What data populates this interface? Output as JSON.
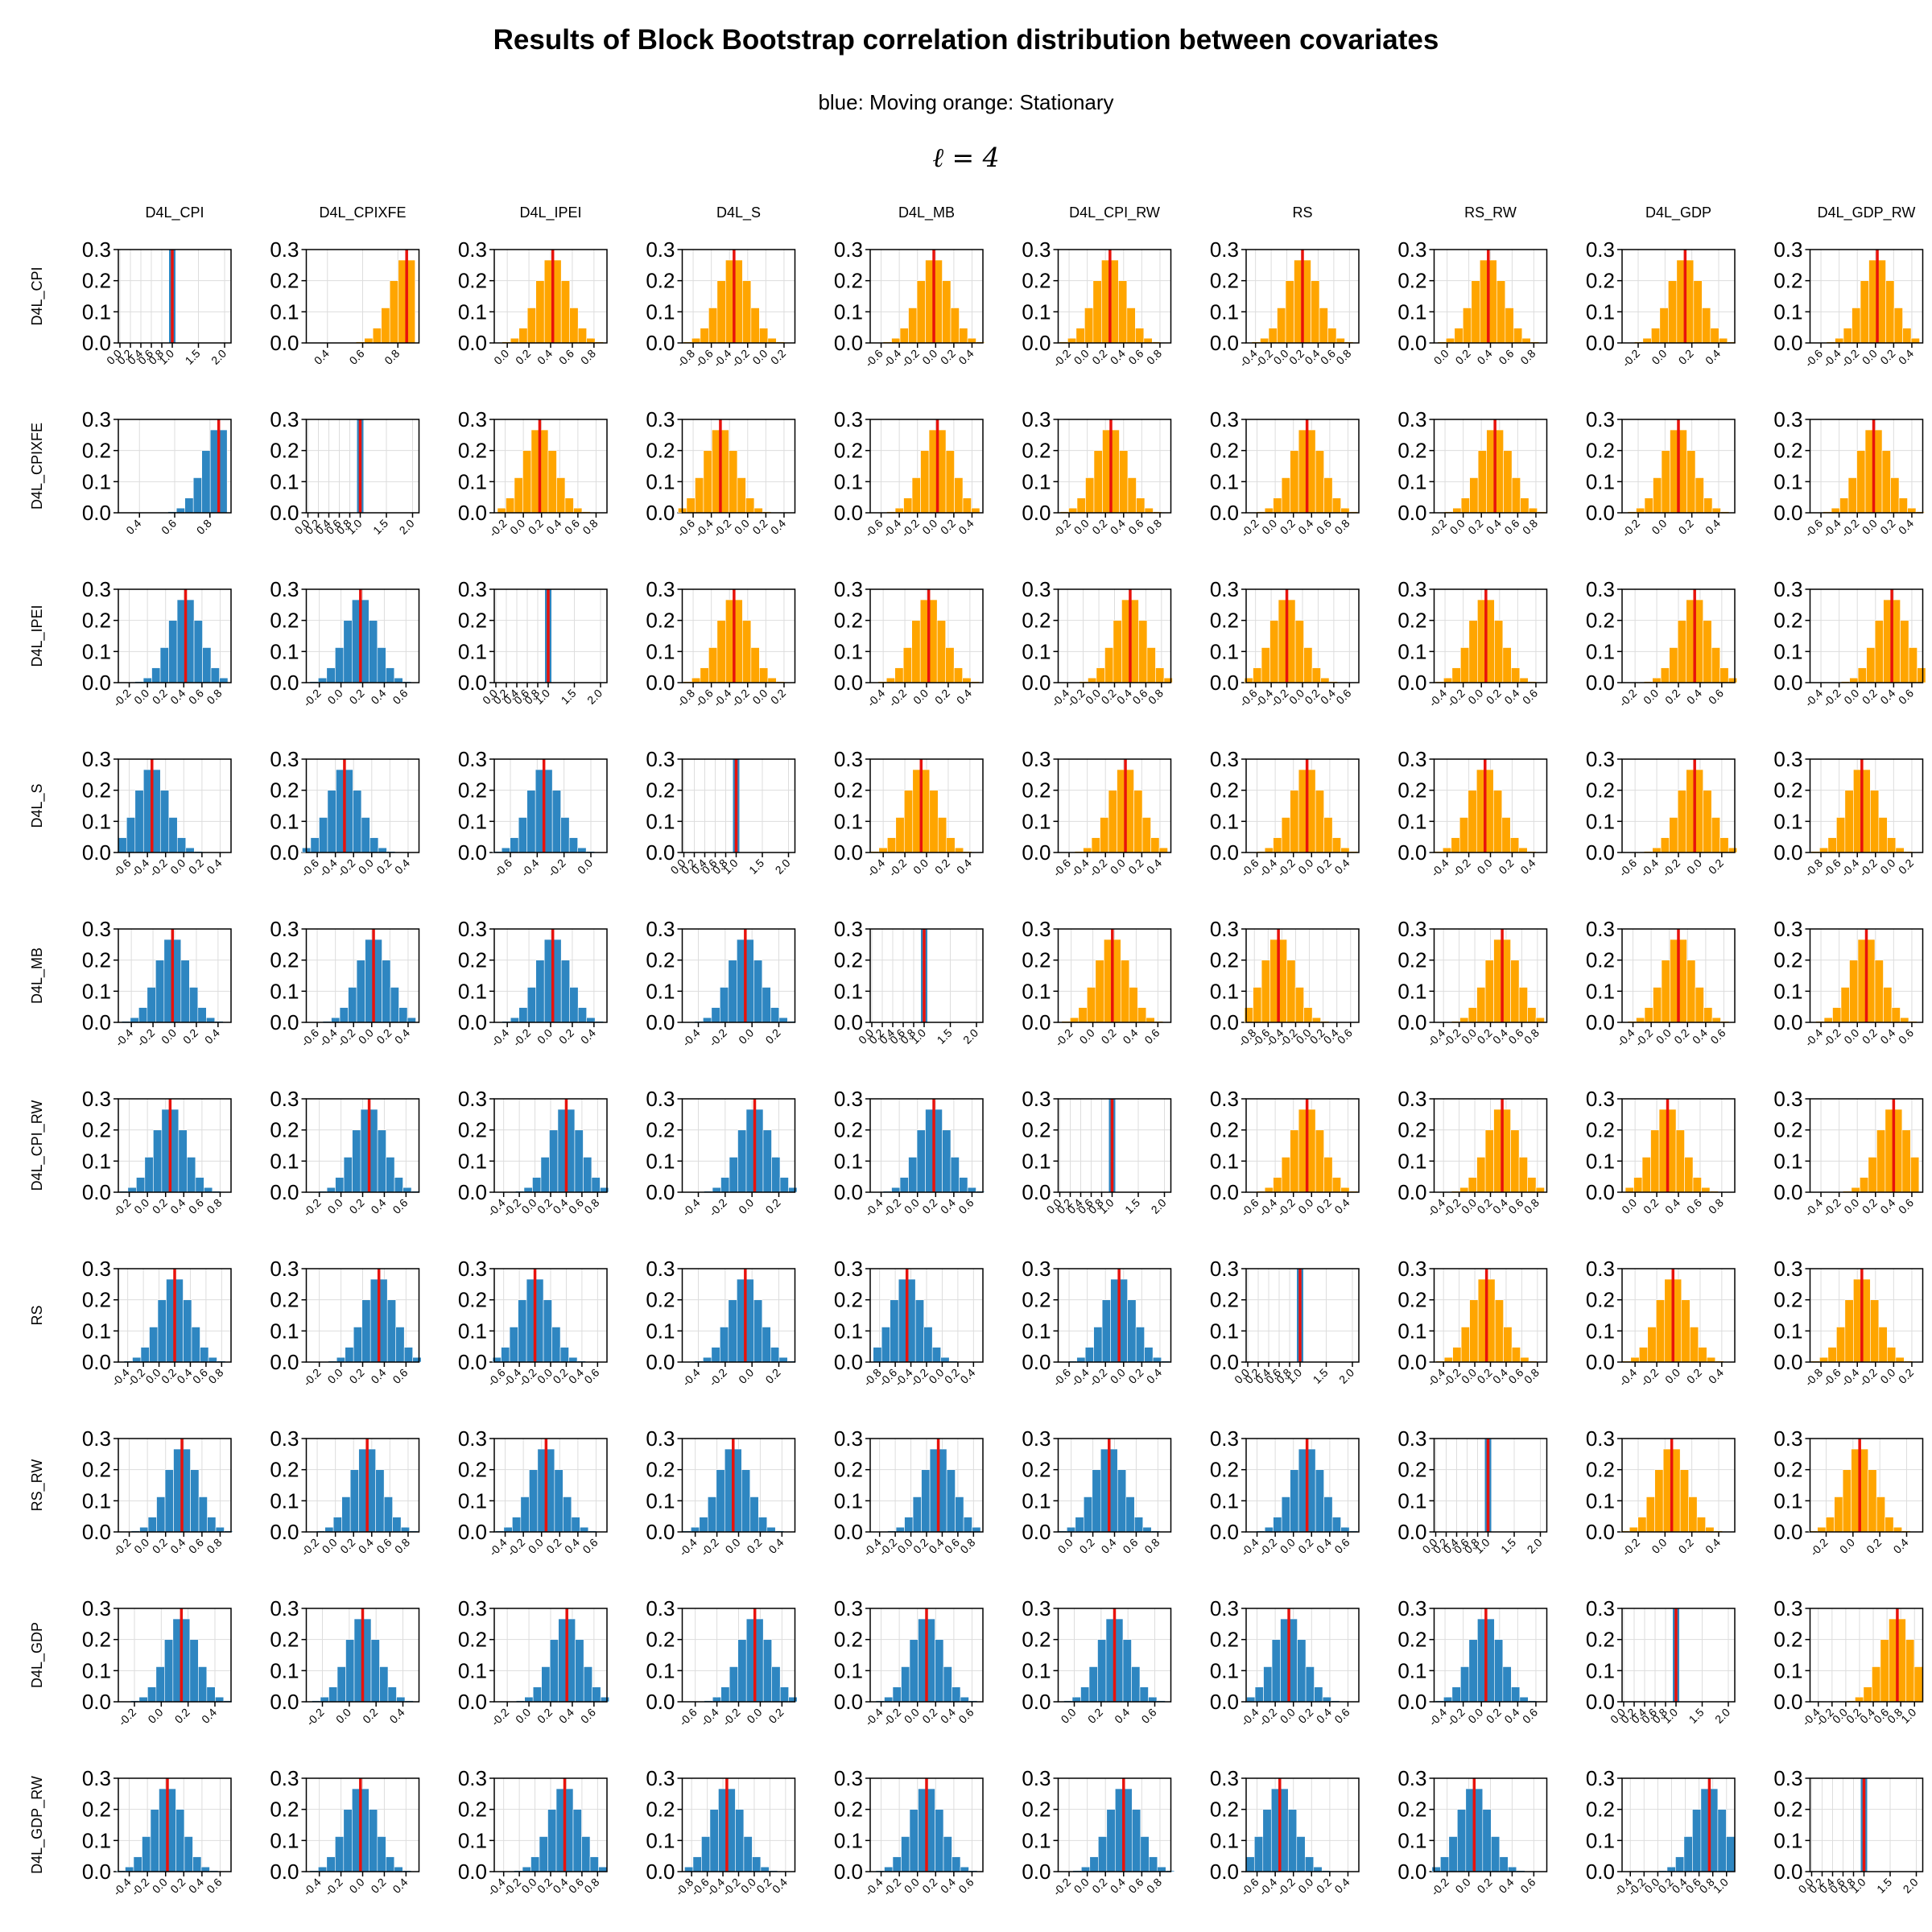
{
  "title": "Results of Block Bootstrap correlation distribution between covariates",
  "subtitle": "blue: Moving   orange: Stationary",
  "block_label": "ℓ = 4",
  "colors": {
    "moving": "#2e86c1",
    "stationary": "#ffa500",
    "mean_line": "#e8120c"
  },
  "chart_data": {
    "type": "histogram-matrix",
    "variables": [
      "D4L_CPI",
      "D4L_CPIXFE",
      "D4L_IPEI",
      "D4L_S",
      "D4L_MB",
      "D4L_CPI_RW",
      "RS",
      "RS_RW",
      "D4L_GDP",
      "D4L_GDP_RW"
    ],
    "legend": {
      "below_diagonal": "Moving",
      "above_diagonal": "Stationary"
    },
    "y_ticks": [
      "0.0",
      "0.1",
      "0.2",
      "0.3"
    ],
    "ylim": [
      0,
      0.3
    ],
    "grid": true,
    "means": [
      [
        1.0,
        0.85,
        0.42,
        -0.35,
        -0.02,
        0.25,
        0.2,
        0.38,
        0.15,
        0.02
      ],
      [
        0.85,
        1.0,
        0.18,
        -0.3,
        0.02,
        0.26,
        0.35,
        0.35,
        0.1,
        -0.02
      ],
      [
        0.42,
        0.18,
        1.0,
        -0.35,
        0.02,
        0.4,
        -0.2,
        0.05,
        0.35,
        0.38
      ],
      [
        -0.35,
        -0.3,
        -0.35,
        1.0,
        -0.05,
        0.02,
        -0.05,
        -0.05,
        -0.05,
        -0.35
      ],
      [
        -0.02,
        0.02,
        0.02,
        -0.05,
        1.0,
        0.18,
        -0.45,
        0.35,
        0.1,
        0.1
      ],
      [
        0.25,
        0.26,
        0.4,
        0.02,
        0.18,
        1.0,
        -0.05,
        0.35,
        0.3,
        0.4
      ],
      [
        0.2,
        0.35,
        -0.2,
        -0.05,
        -0.45,
        -0.05,
        1.0,
        0.15,
        -0.05,
        -0.35
      ],
      [
        0.38,
        0.35,
        0.05,
        -0.05,
        0.35,
        0.35,
        0.15,
        1.0,
        0.05,
        0.05
      ],
      [
        0.15,
        0.1,
        0.35,
        -0.05,
        0.1,
        0.3,
        -0.05,
        0.05,
        1.0,
        0.75
      ],
      [
        0.02,
        -0.02,
        0.38,
        -0.35,
        0.1,
        0.4,
        -0.35,
        0.05,
        0.75,
        1.0
      ]
    ],
    "x_ticks": [
      [
        [
          "0.0",
          "0.2",
          "0.4",
          "0.6",
          "0.8",
          "1.0",
          "1.5",
          "2.0"
        ],
        [
          "0.4",
          "0.6",
          "0.8"
        ],
        [
          "0.0",
          "0.2",
          "0.4",
          "0.6",
          "0.8"
        ],
        [
          "-0.8",
          "-0.6",
          "-0.4",
          "-0.2",
          "0.0",
          "0.2"
        ],
        [
          "-0.6",
          "-0.4",
          "-0.2",
          "0.0",
          "0.2",
          "0.4"
        ],
        [
          "-0.2",
          "0.0",
          "0.2",
          "0.4",
          "0.6",
          "0.8"
        ],
        [
          "-0.4",
          "-0.2",
          "0.0",
          "0.2",
          "0.4",
          "0.6",
          "0.8"
        ],
        [
          "0.0",
          "0.2",
          "0.4",
          "0.6",
          "0.8"
        ],
        [
          "-0.2",
          "0.0",
          "0.2",
          "0.4"
        ],
        [
          "-0.6",
          "-0.4",
          "-0.2",
          "0.0",
          "0.2",
          "0.4"
        ]
      ],
      [
        [
          "0.4",
          "0.6",
          "0.8"
        ],
        [
          "0.0",
          "0.2",
          "0.4",
          "0.6",
          "0.8",
          "1.0",
          "1.5",
          "2.0"
        ],
        [
          "-0.2",
          "0.0",
          "0.2",
          "0.4",
          "0.6",
          "0.8"
        ],
        [
          "-0.6",
          "-0.4",
          "-0.2",
          "0.0",
          "0.2",
          "0.4"
        ],
        [
          "-0.6",
          "-0.4",
          "-0.2",
          "0.0",
          "0.2",
          "0.4"
        ],
        [
          "-0.2",
          "0.0",
          "0.2",
          "0.4",
          "0.6",
          "0.8"
        ],
        [
          "-0.2",
          "0.0",
          "0.2",
          "0.4",
          "0.6",
          "0.8"
        ],
        [
          "-0.2",
          "0.0",
          "0.2",
          "0.4",
          "0.6",
          "0.8"
        ],
        [
          "-0.2",
          "0.0",
          "0.2",
          "0.4"
        ],
        [
          "-0.6",
          "-0.4",
          "-0.2",
          "0.0",
          "0.2",
          "0.4"
        ]
      ],
      [
        [
          "-0.2",
          "0.0",
          "0.2",
          "0.4",
          "0.6",
          "0.8"
        ],
        [
          "-0.2",
          "0.0",
          "0.2",
          "0.4",
          "0.6"
        ],
        [
          "0.0",
          "0.2",
          "0.4",
          "0.6",
          "0.8",
          "1.0",
          "1.5",
          "2.0"
        ],
        [
          "-0.8",
          "-0.6",
          "-0.4",
          "-0.2",
          "0.0",
          "0.2"
        ],
        [
          "-0.4",
          "-0.2",
          "0.0",
          "0.2",
          "0.4"
        ],
        [
          "-0.4",
          "-0.2",
          "0.0",
          "0.2",
          "0.4",
          "0.6",
          "0.8"
        ],
        [
          "-0.6",
          "-0.4",
          "-0.2",
          "0.0",
          "0.2",
          "0.4",
          "0.6"
        ],
        [
          "-0.4",
          "-0.2",
          "0.0",
          "0.2",
          "0.4",
          "0.6"
        ],
        [
          "-0.2",
          "0.0",
          "0.2",
          "0.4",
          "0.6"
        ],
        [
          "-0.4",
          "-0.2",
          "0.0",
          "0.2",
          "0.4",
          "0.6"
        ]
      ],
      [
        [
          "-0.6",
          "-0.4",
          "-0.2",
          "0.0",
          "0.2",
          "0.4"
        ],
        [
          "-0.6",
          "-0.4",
          "-0.2",
          "0.0",
          "0.2",
          "0.4"
        ],
        [
          "-0.6",
          "-0.4",
          "-0.2",
          "0.0"
        ],
        [
          "0.0",
          "0.2",
          "0.4",
          "0.6",
          "0.8",
          "1.0",
          "1.5",
          "2.0"
        ],
        [
          "-0.4",
          "-0.2",
          "0.0",
          "0.2",
          "0.4"
        ],
        [
          "-0.6",
          "-0.4",
          "-0.2",
          "0.0",
          "0.2",
          "0.4"
        ],
        [
          "-0.6",
          "-0.4",
          "-0.2",
          "0.0",
          "0.2",
          "0.4"
        ],
        [
          "-0.4",
          "-0.2",
          "0.0",
          "0.2",
          "0.4"
        ],
        [
          "-0.6",
          "-0.4",
          "-0.2",
          "0.0",
          "0.2"
        ],
        [
          "-0.8",
          "-0.6",
          "-0.4",
          "-0.2",
          "0.0",
          "0.2"
        ]
      ],
      [
        [
          "-0.4",
          "-0.2",
          "0.0",
          "0.2",
          "0.4"
        ],
        [
          "-0.6",
          "-0.4",
          "-0.2",
          "0.0",
          "0.2",
          "0.4"
        ],
        [
          "-0.4",
          "-0.2",
          "0.0",
          "0.2",
          "0.4"
        ],
        [
          "-0.4",
          "-0.2",
          "0.0",
          "0.2"
        ],
        [
          "0.0",
          "0.2",
          "0.4",
          "0.6",
          "0.8",
          "1.0",
          "1.5",
          "2.0"
        ],
        [
          "-0.2",
          "0.0",
          "0.2",
          "0.4",
          "0.6"
        ],
        [
          "-0.8",
          "-0.6",
          "-0.4",
          "-0.2",
          "0.0",
          "0.2",
          "0.4",
          "0.6"
        ],
        [
          "-0.4",
          "-0.2",
          "0.0",
          "0.2",
          "0.4",
          "0.6",
          "0.8"
        ],
        [
          "-0.4",
          "-0.2",
          "0.0",
          "0.2",
          "0.4",
          "0.6"
        ],
        [
          "-0.4",
          "-0.2",
          "0.0",
          "0.2",
          "0.4",
          "0.6"
        ]
      ],
      [
        [
          "-0.2",
          "0.0",
          "0.2",
          "0.4",
          "0.6",
          "0.8"
        ],
        [
          "-0.2",
          "0.0",
          "0.2",
          "0.4",
          "0.6"
        ],
        [
          "-0.4",
          "-0.2",
          "0.0",
          "0.2",
          "0.4",
          "0.6",
          "0.8"
        ],
        [
          "-0.4",
          "-0.2",
          "0.0",
          "0.2"
        ],
        [
          "-0.4",
          "-0.2",
          "0.0",
          "0.2",
          "0.4",
          "0.6"
        ],
        [
          "0.0",
          "0.2",
          "0.4",
          "0.6",
          "0.8",
          "1.0",
          "1.5",
          "2.0"
        ],
        [
          "-0.6",
          "-0.4",
          "-0.2",
          "0.0",
          "0.2",
          "0.4"
        ],
        [
          "-0.4",
          "-0.2",
          "0.0",
          "0.2",
          "0.4",
          "0.6",
          "0.8"
        ],
        [
          "0.0",
          "0.2",
          "0.4",
          "0.6",
          "0.8"
        ],
        [
          "-0.4",
          "-0.2",
          "0.0",
          "0.2",
          "0.4",
          "0.6"
        ]
      ],
      [
        [
          "-0.4",
          "-0.2",
          "0.0",
          "0.2",
          "0.4",
          "0.6",
          "0.8"
        ],
        [
          "-0.2",
          "0.0",
          "0.2",
          "0.4",
          "0.6"
        ],
        [
          "-0.6",
          "-0.4",
          "-0.2",
          "0.0",
          "0.2",
          "0.4",
          "0.6"
        ],
        [
          "-0.4",
          "-0.2",
          "0.0",
          "0.2"
        ],
        [
          "-0.8",
          "-0.6",
          "-0.4",
          "-0.2",
          "0.0",
          "0.2",
          "0.4"
        ],
        [
          "-0.6",
          "-0.4",
          "-0.2",
          "0.0",
          "0.2",
          "0.4"
        ],
        [
          "0.0",
          "0.2",
          "0.4",
          "0.6",
          "0.8",
          "1.0",
          "1.5",
          "2.0"
        ],
        [
          "-0.4",
          "-0.2",
          "0.0",
          "0.2",
          "0.4",
          "0.6",
          "0.8"
        ],
        [
          "-0.4",
          "-0.2",
          "0.0",
          "0.2",
          "0.4"
        ],
        [
          "-0.8",
          "-0.6",
          "-0.4",
          "-0.2",
          "0.0",
          "0.2"
        ]
      ],
      [
        [
          "-0.2",
          "0.0",
          "0.2",
          "0.4",
          "0.6",
          "0.8"
        ],
        [
          "-0.2",
          "0.0",
          "0.2",
          "0.4",
          "0.6",
          "0.8"
        ],
        [
          "-0.4",
          "-0.2",
          "0.0",
          "0.2",
          "0.4",
          "0.6"
        ],
        [
          "-0.4",
          "-0.2",
          "0.0",
          "0.2",
          "0.4"
        ],
        [
          "-0.4",
          "-0.2",
          "0.0",
          "0.2",
          "0.4",
          "0.6",
          "0.8"
        ],
        [
          "0.0",
          "0.2",
          "0.4",
          "0.6",
          "0.8"
        ],
        [
          "-0.4",
          "-0.2",
          "0.0",
          "0.2",
          "0.4",
          "0.6"
        ],
        [
          "0.0",
          "0.2",
          "0.4",
          "0.6",
          "0.8",
          "1.0",
          "1.5",
          "2.0"
        ],
        [
          "-0.2",
          "0.0",
          "0.2",
          "0.4"
        ],
        [
          "-0.2",
          "0.0",
          "0.2",
          "0.4"
        ]
      ],
      [
        [
          "-0.2",
          "0.0",
          "0.2",
          "0.4"
        ],
        [
          "-0.2",
          "0.0",
          "0.2",
          "0.4"
        ],
        [
          "-0.2",
          "0.0",
          "0.2",
          "0.4",
          "0.6"
        ],
        [
          "-0.6",
          "-0.4",
          "-0.2",
          "0.0",
          "0.2"
        ],
        [
          "-0.4",
          "-0.2",
          "0.0",
          "0.2",
          "0.4",
          "0.6"
        ],
        [
          "0.0",
          "0.2",
          "0.4",
          "0.6"
        ],
        [
          "-0.4",
          "-0.2",
          "0.0",
          "0.2",
          "0.4",
          "0.6"
        ],
        [
          "-0.4",
          "-0.2",
          "0.0",
          "0.2",
          "0.4",
          "0.6"
        ],
        [
          "0.0",
          "0.2",
          "0.4",
          "0.6",
          "0.8",
          "1.0",
          "1.5",
          "2.0"
        ],
        [
          "-0.4",
          "-0.2",
          "0.0",
          "0.2",
          "0.4",
          "0.6",
          "0.8",
          "1.0"
        ]
      ],
      [
        [
          "-0.4",
          "-0.2",
          "0.0",
          "0.2",
          "0.4",
          "0.6"
        ],
        [
          "-0.4",
          "-0.2",
          "0.0",
          "0.2",
          "0.4"
        ],
        [
          "-0.4",
          "-0.2",
          "0.0",
          "0.2",
          "0.4",
          "0.6",
          "0.8"
        ],
        [
          "-0.8",
          "-0.6",
          "-0.4",
          "-0.2",
          "0.0",
          "0.2",
          "0.4"
        ],
        [
          "-0.4",
          "-0.2",
          "0.0",
          "0.2",
          "0.4",
          "0.6"
        ],
        [
          "-0.2",
          "0.0",
          "0.2",
          "0.4",
          "0.6",
          "0.8"
        ],
        [
          "-0.6",
          "-0.4",
          "-0.2",
          "0.0",
          "0.2",
          "0.4"
        ],
        [
          "-0.2",
          "0.0",
          "0.2",
          "0.4",
          "0.6"
        ],
        [
          "-0.4",
          "-0.2",
          "0.0",
          "0.2",
          "0.4",
          "0.6",
          "0.8",
          "1.0"
        ],
        [
          "0.0",
          "0.2",
          "0.4",
          "0.6",
          "0.8",
          "1.0",
          "1.5",
          "2.0"
        ]
      ]
    ]
  }
}
